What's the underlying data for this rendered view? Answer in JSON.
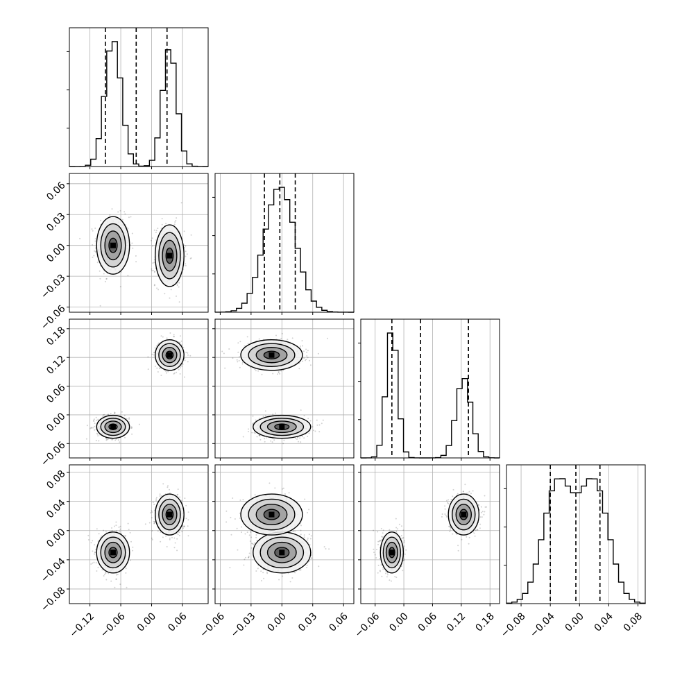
{
  "chart_data": {
    "type": "corner",
    "n_params": 4,
    "grid": true,
    "colors": {
      "axes": "#000000",
      "grid": "#b0b0b0",
      "density": "#000000",
      "background": "#ffffff"
    },
    "ranges": [
      [
        -0.16,
        0.11
      ],
      [
        -0.065,
        0.07
      ],
      [
        -0.09,
        0.2
      ],
      [
        -0.1,
        0.09
      ]
    ],
    "ticks": [
      [
        -0.12,
        -0.06,
        0.0,
        0.06
      ],
      [
        -0.06,
        -0.03,
        0.0,
        0.03,
        0.06
      ],
      [
        -0.06,
        0.0,
        0.06,
        0.12,
        0.18
      ],
      [
        -0.08,
        -0.04,
        0.0,
        0.04,
        0.08
      ]
    ],
    "tick_labels": [
      [
        "−0.12",
        "−0.06",
        "0.00",
        "0.06"
      ],
      [
        "−0.06",
        "−0.03",
        "0.00",
        "0.03",
        "0.06"
      ],
      [
        "−0.06",
        "0.00",
        "0.06",
        "0.12",
        "0.18"
      ],
      [
        "−0.08",
        "−0.04",
        "0.00",
        "0.04",
        "0.08"
      ]
    ],
    "histograms": [
      {
        "quantiles": [
          -0.09,
          -0.03,
          0.03
        ],
        "modes": [
          {
            "mu": -0.075,
            "sigma": 0.016,
            "w": 0.55
          },
          {
            "mu": 0.035,
            "sigma": 0.014,
            "w": 0.45
          }
        ]
      },
      {
        "quantiles": [
          -0.017,
          -0.002,
          0.013
        ],
        "modes": [
          {
            "mu": -0.002,
            "sigma": 0.015,
            "w": 1.0
          }
        ]
      },
      {
        "quantiles": [
          -0.025,
          0.035,
          0.135
        ],
        "modes": [
          {
            "mu": -0.025,
            "sigma": 0.012,
            "w": 0.55
          },
          {
            "mu": 0.125,
            "sigma": 0.016,
            "w": 0.45
          }
        ]
      },
      {
        "quantiles": [
          -0.04,
          -0.005,
          0.028
        ],
        "modes": [
          {
            "mu": -0.03,
            "sigma": 0.02,
            "w": 0.5
          },
          {
            "mu": 0.02,
            "sigma": 0.02,
            "w": 0.5
          }
        ]
      }
    ],
    "clusters": [
      {
        "weight": 0.55,
        "mean": [
          -0.075,
          0.0,
          -0.025,
          -0.03
        ],
        "sd": [
          0.016,
          0.014,
          0.012,
          0.014
        ]
      },
      {
        "weight": 0.45,
        "mean": [
          0.035,
          -0.01,
          0.125,
          0.022
        ],
        "sd": [
          0.014,
          0.015,
          0.016,
          0.014
        ]
      }
    ]
  }
}
